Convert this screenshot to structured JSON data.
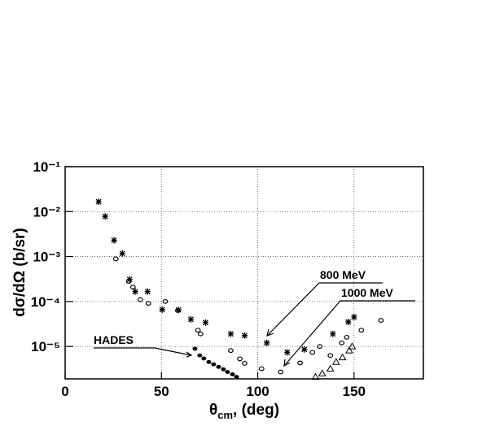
{
  "chart_data": {
    "type": "scatter",
    "ylog": true,
    "grid": true,
    "xlabel": [
      "θ",
      "cm",
      ", (deg)"
    ],
    "ylabel": "dσ/dΩ (b/sr)",
    "xlim": [
      0,
      186
    ],
    "ylim": [
      1.9e-06,
      0.1
    ],
    "xticks": [
      0,
      50,
      100,
      150
    ],
    "yticks": [
      {
        "value": 0.1,
        "label": "10⁻¹"
      },
      {
        "value": 0.01,
        "label": "10⁻²"
      },
      {
        "value": 0.001,
        "label": "10⁻³"
      },
      {
        "value": 0.0001,
        "label": "10⁻⁴"
      },
      {
        "value": 1e-05,
        "label": "10⁻⁵"
      }
    ],
    "annotations": [
      "HADES",
      "800 MeV",
      "1000 MeV"
    ],
    "series": [
      {
        "marker": "star",
        "color": "#000000",
        "x": [
          17.4,
          20.8,
          25.4,
          29.7,
          33.5,
          36.4,
          42.8,
          50.4,
          58.9,
          65.3,
          72.9,
          86,
          93.2,
          104.7,
          115.3,
          124.2,
          139,
          147,
          150
        ],
        "values": [
          0.0166,
          0.0078,
          0.0023,
          0.00117,
          0.00031,
          0.000166,
          0.000166,
          6.6e-05,
          6.5e-05,
          4e-05,
          3.4e-05,
          1.9e-05,
          1.75e-05,
          1.2e-05,
          7.4e-06,
          8.6e-06,
          1.9e-05,
          3.5e-05,
          4.5e-05
        ]
      },
      {
        "marker": "circle",
        "color": "#000000",
        "x": [
          26.3,
          33,
          35.2,
          39,
          43.2,
          52,
          58.5,
          69,
          70.3,
          86,
          90.7,
          93.2,
          102,
          111.9,
          122,
          128.4,
          132.2,
          137.7,
          143.6,
          146.2,
          153.8,
          164
        ],
        "values": [
          0.00089,
          0.00028,
          0.00021,
          0.00011,
          9.1e-05,
          0.0001,
          6.3e-05,
          2.3e-05,
          1.9e-05,
          8.1e-06,
          5.3e-06,
          4.2e-06,
          3.2e-06,
          2.7e-06,
          4.3e-06,
          7.4e-06,
          1e-05,
          6.3e-06,
          1.2e-05,
          1.6e-05,
          2.3e-05,
          3.8e-05
        ]
      },
      {
        "marker": "triangle",
        "color": "#000000",
        "x": [
          130,
          133.5,
          137.7,
          140.7,
          144,
          147.5,
          149
        ],
        "values": [
          2.1e-06,
          2.5e-06,
          3.2e-06,
          4.5e-06,
          5.7e-06,
          8.1e-06,
          1e-05
        ]
      },
      {
        "marker": "dot",
        "color": "#000000",
        "x": [
          67.4,
          69.9,
          72,
          74.6,
          77.1,
          79.7,
          82.2,
          84.3,
          86.9,
          89
        ],
        "values": [
          8.9e-06,
          6.3e-06,
          5.4e-06,
          4.5e-06,
          4e-06,
          3.5e-06,
          3.1e-06,
          2.7e-06,
          2.4e-06,
          2.1e-06
        ]
      }
    ]
  }
}
